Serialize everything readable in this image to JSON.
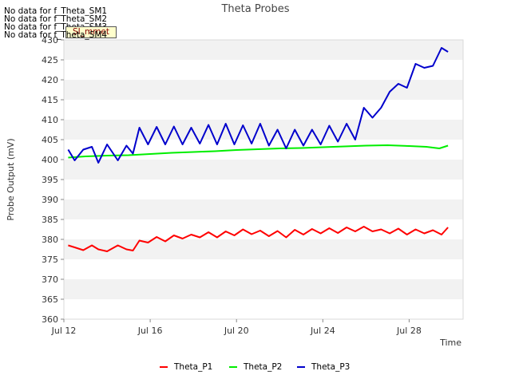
{
  "messages": [
    "No data for f_Theta_SM1",
    "No data for f_Theta_SM2",
    "No data for f_Theta_SM3",
    "No data for f_Theta_SM4"
  ],
  "badge": "SI_mmet",
  "colors": {
    "p1": "#ff0000",
    "p2": "#00ee00",
    "p3": "#0000cc",
    "band": "#f2f2f2",
    "frame": "#d9d9d9"
  },
  "chart_data": {
    "type": "line",
    "title": "Theta Probes",
    "xlabel": "Time",
    "ylabel": "Probe Output (mV)",
    "xlim": [
      "Jul 12",
      "Jul 30.5"
    ],
    "ylim": [
      360,
      430
    ],
    "x_ticks": [
      "Jul 12",
      "Jul 16",
      "Jul 20",
      "Jul 24",
      "Jul 28"
    ],
    "y_ticks": [
      360,
      365,
      370,
      375,
      380,
      385,
      390,
      395,
      400,
      405,
      410,
      415,
      420,
      425,
      430
    ],
    "grid": "horizontal bands",
    "legend": "bottom",
    "series": [
      {
        "name": "Theta_P1",
        "x_days": [
          12.2,
          12.5,
          12.9,
          13.3,
          13.6,
          14.0,
          14.5,
          14.9,
          15.2,
          15.5,
          15.9,
          16.3,
          16.7,
          17.1,
          17.5,
          17.9,
          18.3,
          18.7,
          19.1,
          19.5,
          19.9,
          20.3,
          20.7,
          21.1,
          21.5,
          21.9,
          22.3,
          22.7,
          23.1,
          23.5,
          23.9,
          24.3,
          24.7,
          25.1,
          25.5,
          25.9,
          26.3,
          26.7,
          27.1,
          27.5,
          27.9,
          28.3,
          28.7,
          29.1,
          29.5,
          29.8
        ],
        "values": [
          378.5,
          378.0,
          377.3,
          378.5,
          377.5,
          377,
          378.5,
          377.5,
          377.2,
          379.7,
          379.2,
          380.6,
          379.5,
          381,
          380.2,
          381.2,
          380.5,
          381.8,
          380.5,
          382,
          381,
          382.5,
          381.3,
          382.2,
          380.8,
          382.1,
          380.5,
          382.4,
          381.2,
          382.6,
          381.5,
          382.8,
          381.6,
          383,
          382.0,
          383.2,
          382.0,
          382.5,
          381.5,
          382.7,
          381.2,
          382.5,
          381.5,
          382.3,
          381.2,
          383
        ]
      },
      {
        "name": "Theta_P2",
        "x_days": [
          12.2,
          13.0,
          14.0,
          15.0,
          16.0,
          17.0,
          18.0,
          19.0,
          20.0,
          21.0,
          22.0,
          23.0,
          24.0,
          25.0,
          26.0,
          27.0,
          28.0,
          28.8,
          29.4,
          29.8
        ],
        "values": [
          400.5,
          400.8,
          401.0,
          401.1,
          401.4,
          401.7,
          401.9,
          402.1,
          402.4,
          402.6,
          402.8,
          402.9,
          403.1,
          403.3,
          403.5,
          403.6,
          403.4,
          403.2,
          402.8,
          403.5
        ]
      },
      {
        "name": "Theta_P3",
        "x_days": [
          12.2,
          12.5,
          12.9,
          13.3,
          13.6,
          14.0,
          14.5,
          14.9,
          15.2,
          15.5,
          15.9,
          16.3,
          16.7,
          17.1,
          17.5,
          17.9,
          18.3,
          18.7,
          19.1,
          19.5,
          19.9,
          20.3,
          20.7,
          21.1,
          21.5,
          21.9,
          22.3,
          22.7,
          23.1,
          23.5,
          23.9,
          24.3,
          24.7,
          25.1,
          25.5,
          25.9,
          26.3,
          26.7,
          27.1,
          27.5,
          27.9,
          28.3,
          28.7,
          29.1,
          29.5,
          29.8
        ],
        "values": [
          402.5,
          399.8,
          402.5,
          403.2,
          399.2,
          403.8,
          399.8,
          403.5,
          401.5,
          408,
          403.8,
          408.2,
          403.8,
          408.3,
          403.8,
          408,
          404,
          408.7,
          403.8,
          409,
          403.8,
          408.6,
          404,
          409,
          403.5,
          407.5,
          402.8,
          407.5,
          403.5,
          407.5,
          403.8,
          408.5,
          404.5,
          409,
          405,
          413,
          410.5,
          413,
          417,
          419,
          418,
          424,
          423,
          423.5,
          428,
          427
        ]
      }
    ]
  }
}
